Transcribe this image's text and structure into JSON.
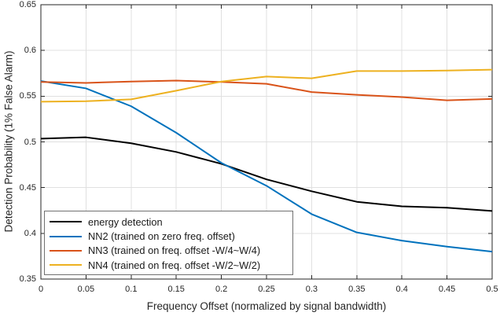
{
  "chart_data": {
    "type": "line",
    "title": "",
    "xlabel": "Frequency Offset (normalized by signal bandwidth)",
    "ylabel": "Detection Probability (1% False Alarm)",
    "xlim": [
      0,
      0.5
    ],
    "ylim": [
      0.35,
      0.65
    ],
    "grid": true,
    "grid_color": "#e0e0e0",
    "axis_color": "#262626",
    "legend_position": "southwest-inside",
    "legend_border_color": "#707070",
    "x_ticks": [
      0,
      0.05,
      0.1,
      0.15,
      0.2,
      0.25,
      0.3,
      0.35,
      0.4,
      0.45,
      0.5
    ],
    "x_tick_labels": [
      "0",
      "0.05",
      "0.1",
      "0.15",
      "0.2",
      "0.25",
      "0.3",
      "0.35",
      "0.4",
      "0.45",
      "0.5"
    ],
    "y_ticks": [
      0.35,
      0.4,
      0.45,
      0.5,
      0.55,
      0.6,
      0.65
    ],
    "y_tick_labels": [
      "0.35",
      "0.4",
      "0.45",
      "0.5",
      "0.55",
      "0.6",
      "0.65"
    ],
    "x": [
      0,
      0.05,
      0.1,
      0.15,
      0.2,
      0.25,
      0.3,
      0.35,
      0.4,
      0.45,
      0.5
    ],
    "series": [
      {
        "name": "energy detection",
        "color": "#000000",
        "values": [
          0.5035,
          0.505,
          0.4985,
          0.489,
          0.476,
          0.459,
          0.446,
          0.4345,
          0.4295,
          0.428,
          0.4245
        ]
      },
      {
        "name": "NN2 (trained on zero freq. offset)",
        "color": "#0072BD",
        "values": [
          0.5665,
          0.5585,
          0.539,
          0.51,
          0.477,
          0.452,
          0.421,
          0.401,
          0.392,
          0.3855,
          0.38
        ]
      },
      {
        "name": "NN3 (trained on freq. offset -W/4~W/4)",
        "color": "#D95319",
        "values": [
          0.5655,
          0.5645,
          0.566,
          0.567,
          0.5655,
          0.5635,
          0.5545,
          0.5515,
          0.549,
          0.5455,
          0.547
        ]
      },
      {
        "name": "NN4 (trained on freq. offset -W/2~W/2)",
        "color": "#EDB120",
        "values": [
          0.544,
          0.5445,
          0.5465,
          0.556,
          0.566,
          0.5715,
          0.5695,
          0.5775,
          0.5775,
          0.578,
          0.579
        ]
      }
    ]
  }
}
